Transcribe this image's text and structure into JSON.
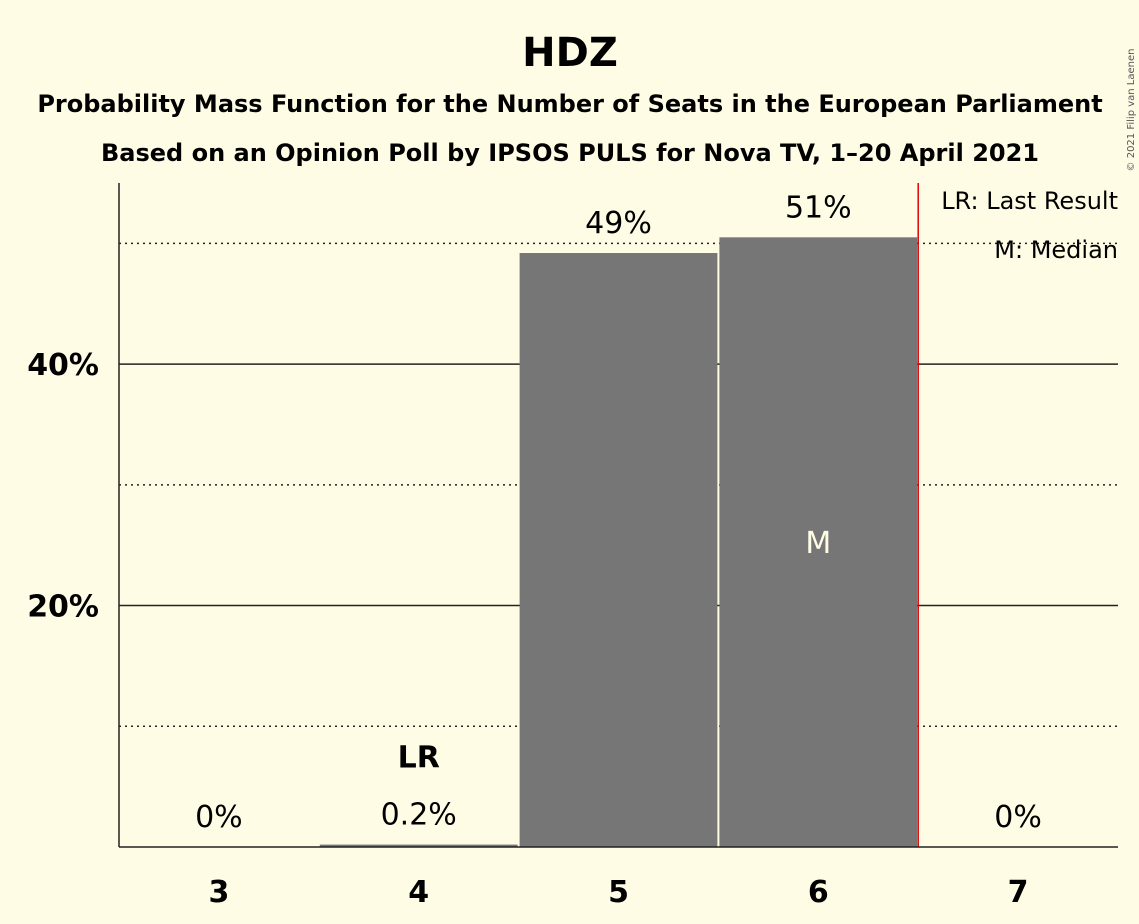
{
  "chart_data": {
    "type": "bar",
    "title": "HDZ",
    "subtitle": "Probability Mass Function for the Number of Seats in the European Parliament",
    "subtitle2": "Based on an Opinion Poll by IPSOS PULS for Nova TV, 1–20 April 2021",
    "categories": [
      "3",
      "4",
      "5",
      "6",
      "7"
    ],
    "values": [
      0,
      0.2,
      49.2,
      50.5,
      0
    ],
    "value_labels": [
      "0%",
      "0.2%",
      "49%",
      "51%",
      "0%"
    ],
    "ylim": [
      0,
      55
    ],
    "yticks": [
      {
        "value": 20,
        "label": "20%"
      },
      {
        "value": 40,
        "label": "40%"
      }
    ],
    "minor_gridlines": [
      10,
      30,
      50
    ],
    "last_result_category": "4",
    "last_result_marker": "LR",
    "median_category": "6",
    "median_marker": "M",
    "majority_line_after_category": "6",
    "legend": {
      "position": "top-right",
      "items": [
        "LR: Last Result",
        "M: Median"
      ]
    },
    "copyright": "© 2021 Filip van Laenen",
    "colors": {
      "background": "#fffce6",
      "bar": "#767676",
      "majority_line": "#e00000",
      "text": "#222222",
      "median_text": "#fffce6"
    }
  }
}
